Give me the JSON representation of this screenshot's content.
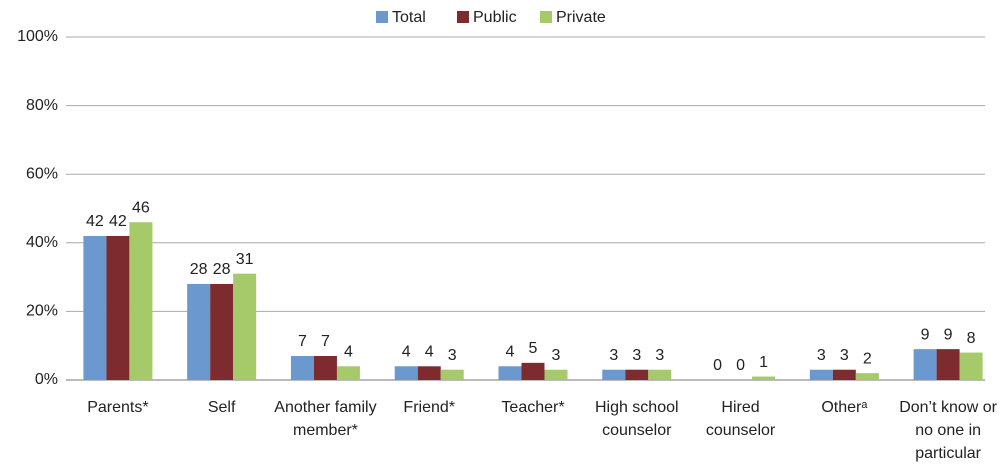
{
  "chart_data": {
    "type": "bar",
    "categories": [
      "Parents*",
      "Self",
      "Another family member*",
      "Friend*",
      "Teacher*",
      "High school counselor",
      "Hired counselor",
      "Otherᵃ",
      "Don’t know or no one in particular"
    ],
    "series": [
      {
        "name": "Total",
        "color": "#6b99cf",
        "values": [
          42,
          28,
          7,
          4,
          4,
          3,
          0,
          3,
          9
        ]
      },
      {
        "name": "Public",
        "color": "#7d2b2f",
        "values": [
          42,
          28,
          7,
          4,
          5,
          3,
          0,
          3,
          9
        ]
      },
      {
        "name": "Private",
        "color": "#a6c96a",
        "values": [
          46,
          31,
          4,
          3,
          3,
          3,
          1,
          2,
          8
        ]
      }
    ],
    "ylim": [
      0,
      100
    ],
    "yticks": [
      {
        "value": 0,
        "label": "0%"
      },
      {
        "value": 20,
        "label": "20%"
      },
      {
        "value": 40,
        "label": "40%"
      },
      {
        "value": 60,
        "label": "60%"
      },
      {
        "value": 80,
        "label": "80%"
      },
      {
        "value": 100,
        "label": "100%"
      }
    ],
    "grid": true,
    "legend": "top"
  }
}
